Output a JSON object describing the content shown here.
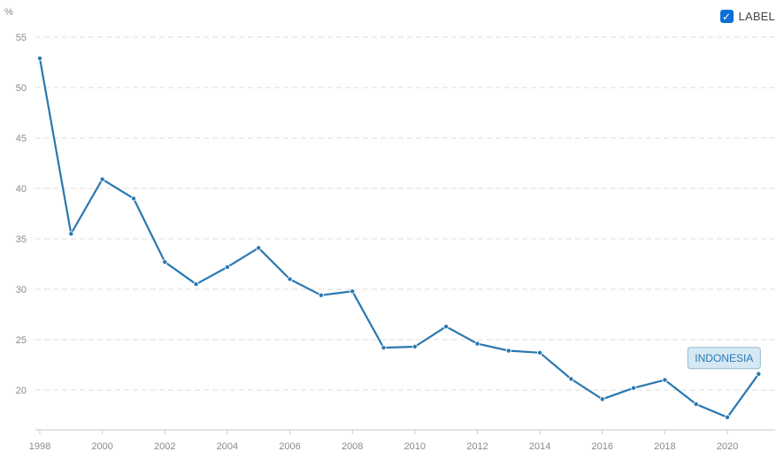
{
  "legend": {
    "label": "LABEL",
    "checked": true,
    "check_icon": "check-icon"
  },
  "colors": {
    "series": "#2a78b0",
    "tag_bg": "#d6e8f3",
    "tag_border": "#8fb8d4",
    "tag_text": "#2a78b0"
  },
  "chart_data": {
    "type": "line",
    "title": "",
    "xlabel": "",
    "ylabel": "%",
    "x": [
      1998,
      1999,
      2000,
      2001,
      2002,
      2003,
      2004,
      2005,
      2006,
      2007,
      2008,
      2009,
      2010,
      2011,
      2012,
      2013,
      2014,
      2015,
      2016,
      2017,
      2018,
      2019,
      2020,
      2021
    ],
    "series": [
      {
        "name": "INDONESIA",
        "values": [
          52.9,
          35.5,
          40.9,
          39.0,
          32.7,
          30.5,
          32.2,
          34.1,
          31.0,
          29.4,
          29.8,
          24.2,
          24.3,
          26.3,
          24.6,
          23.9,
          23.7,
          21.1,
          19.1,
          20.2,
          21.0,
          18.6,
          17.3,
          21.6
        ]
      }
    ],
    "ylim": [
      15,
      55
    ],
    "yticks": [
      20,
      25,
      30,
      35,
      40,
      45,
      50,
      55
    ],
    "xlim": [
      1998,
      2021
    ],
    "xticks": [
      1998,
      2000,
      2002,
      2004,
      2006,
      2008,
      2010,
      2012,
      2014,
      2016,
      2018,
      2020
    ],
    "grid": true,
    "legend_position": "top-right"
  }
}
